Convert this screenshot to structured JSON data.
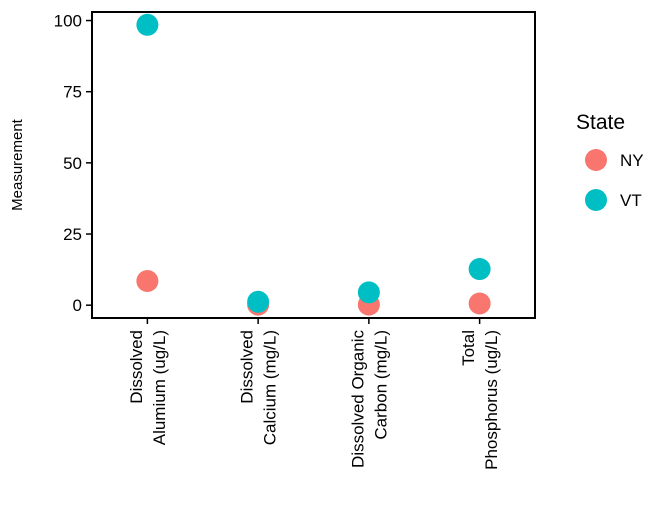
{
  "chart_data": {
    "type": "scatter",
    "title": "",
    "xlabel": "",
    "ylabel": "Measurement",
    "ylim": [
      -4.5,
      103
    ],
    "yticks": [
      0,
      25,
      50,
      75,
      100
    ],
    "categories": [
      [
        "Dissolved",
        "Alumium (ug/L)"
      ],
      [
        "Dissolved",
        "Calcium (mg/L)"
      ],
      [
        "Dissolved Organic",
        "Carbon (mg/L)"
      ],
      [
        "Total",
        "Phosphorus (ug/L)"
      ]
    ],
    "series": [
      {
        "name": "NY",
        "color": "#F8766D",
        "values": [
          8.5,
          0.2,
          0.2,
          0.6
        ]
      },
      {
        "name": "VT",
        "color": "#00BFC4",
        "values": [
          98.5,
          1.2,
          4.5,
          12.7
        ]
      }
    ],
    "legend": {
      "title": "State",
      "position": "right"
    },
    "grid": false
  }
}
